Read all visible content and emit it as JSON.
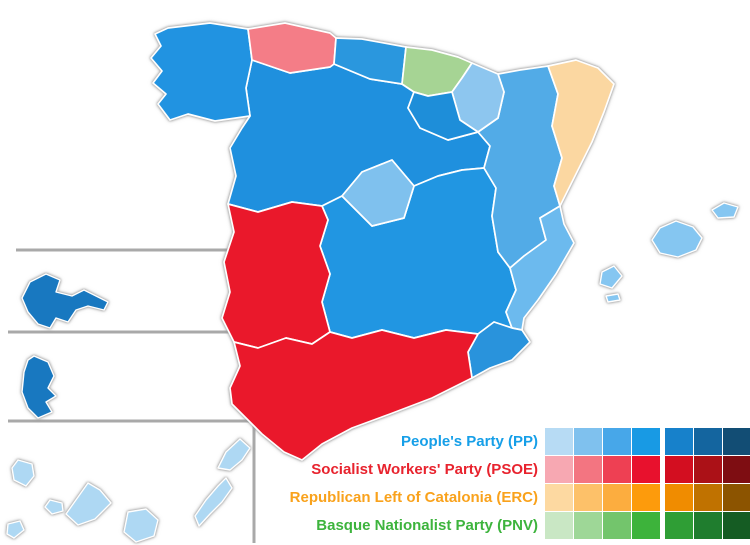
{
  "background": "#ffffff",
  "map": {
    "stroke_color": "#ffffff",
    "halo_color": "#9a9a9a",
    "inset_line_color": "#a9a9a9",
    "regions": {
      "galicia": {
        "name": "Galicia",
        "party": "PP",
        "color": "#2193e1"
      },
      "asturias": {
        "name": "Asturias",
        "party": "PSOE",
        "color": "#f47d87"
      },
      "cantabria": {
        "name": "Cantabria",
        "party": "PP",
        "color": "#2a97de"
      },
      "basque-country": {
        "name": "Basque Country",
        "party": "PNV",
        "color": "#a6d494"
      },
      "navarre": {
        "name": "Navarre",
        "party": "PP",
        "color": "#8dc6ef"
      },
      "la-rioja": {
        "name": "La Rioja",
        "party": "PP",
        "color": "#1e8ed9"
      },
      "aragon": {
        "name": "Aragon",
        "party": "PP",
        "color": "#52abe7"
      },
      "catalonia": {
        "name": "Catalonia",
        "party": "ERC",
        "color": "#fbd7a1"
      },
      "castile-leon": {
        "name": "Castile and Leon",
        "party": "PP",
        "color": "#1f90de"
      },
      "madrid": {
        "name": "Community of Madrid",
        "party": "PP",
        "color": "#7fc1ee"
      },
      "castilla-la-mancha": {
        "name": "Castilla-La Mancha",
        "party": "PP",
        "color": "#2196e2"
      },
      "valencia": {
        "name": "Valencian Community",
        "party": "PP",
        "color": "#6cbaee"
      },
      "murcia": {
        "name": "Region of Murcia",
        "party": "PP",
        "color": "#2993dc"
      },
      "extremadura": {
        "name": "Extremadura",
        "party": "PSOE",
        "color": "#ea182b"
      },
      "andalusia": {
        "name": "Andalusia",
        "party": "PSOE",
        "color": "#ea182b"
      },
      "balearic-islands": {
        "name": "Balearic Islands",
        "party": "PP",
        "color": "#85c6f1"
      },
      "canary-inset-west": {
        "name": "Canary Islands (western province inset)",
        "party": "PP",
        "color": "#1878c0"
      },
      "canary-inset-east": {
        "name": "Canary Islands (eastern province inset)",
        "party": "PP",
        "color": "#1878c0"
      },
      "canary-archipelago": {
        "name": "Canary Islands (archipelago)",
        "party": "PP",
        "color": "#aed8f3"
      }
    }
  },
  "legend": {
    "entries": [
      {
        "id": "pp",
        "label": "People's Party (PP)",
        "label_color": "#169fe8",
        "shades": [
          "#b7dbf4",
          "#7fc1ee",
          "#47a7e9",
          "#189ae4",
          "#1781cb",
          "#14659f",
          "#124d74"
        ]
      },
      {
        "id": "psoe",
        "label": "Socialist Workers' Party (PSOE)",
        "label_color": "#e8232e",
        "shades": [
          "#f7a8b2",
          "#f37581",
          "#ee4053",
          "#e8112d",
          "#d30e20",
          "#ab1117",
          "#7e0d12"
        ]
      },
      {
        "id": "erc",
        "label": "Republican Left of Catalonia (ERC)",
        "label_color": "#f9a21c",
        "shades": [
          "#fdd9a1",
          "#fdc169",
          "#fcad3f",
          "#fd9b0c",
          "#f08c00",
          "#c07200",
          "#8c5400"
        ]
      },
      {
        "id": "pnv",
        "label": "Basque Nationalist Party (PNV)",
        "label_color": "#3db43d",
        "shades": [
          "#c9e7c4",
          "#9ed797",
          "#73c56c",
          "#3db33b",
          "#2f9e35",
          "#1f7d2e",
          "#155c23"
        ]
      }
    ]
  }
}
